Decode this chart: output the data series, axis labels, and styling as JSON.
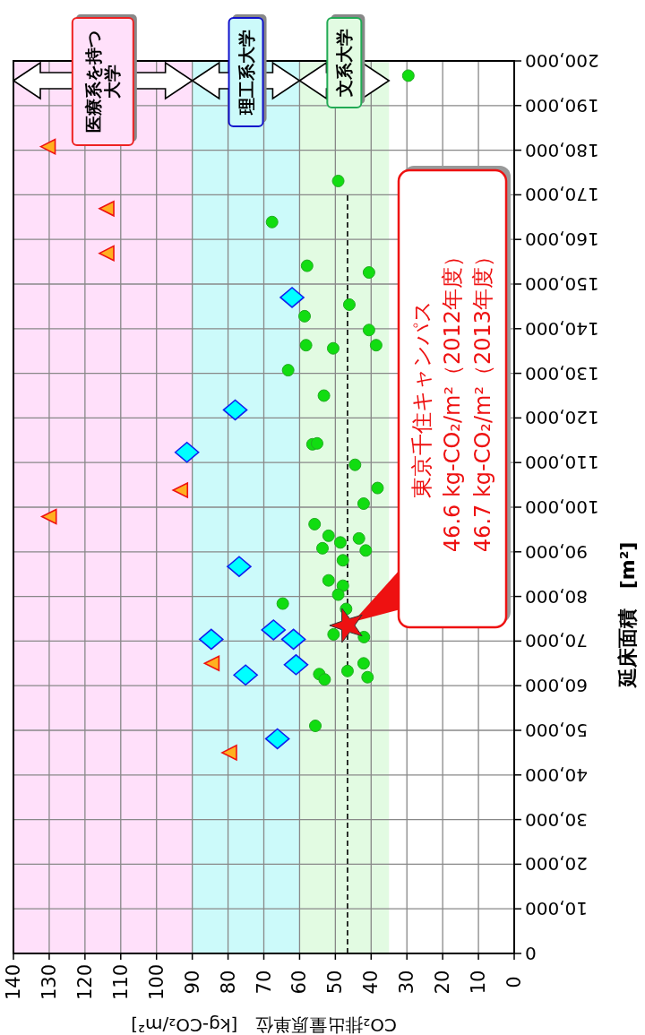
{
  "chart_data": {
    "type": "scatter",
    "xlabel": "CO₂排出量原単位　[kg-CO₂/m²]",
    "ylabel": "延床面積　[m²]",
    "xlim": [
      140,
      0
    ],
    "xticks": [
      0,
      10,
      20,
      30,
      40,
      50,
      60,
      70,
      80,
      90,
      100,
      110,
      120,
      130,
      140
    ],
    "ylim": [
      0,
      200000
    ],
    "yticks": [
      0,
      {
        "value": 10000,
        "label": "10,000"
      },
      {
        "value": 20000,
        "label": "20,000"
      },
      {
        "value": 30000,
        "label": "30,000"
      },
      {
        "value": 40000,
        "label": "40,000"
      },
      {
        "value": 50000,
        "label": "50,000"
      },
      {
        "value": 60000,
        "label": "60,000"
      },
      {
        "value": 70000,
        "label": "70,000"
      },
      {
        "value": 80000,
        "label": "80,000"
      },
      {
        "value": 90000,
        "label": "90,000"
      },
      {
        "value": 100000,
        "label": "100,000"
      },
      {
        "value": 110000,
        "label": "110,000"
      },
      {
        "value": 120000,
        "label": "120,000"
      },
      {
        "value": 130000,
        "label": "130,000"
      },
      {
        "value": 140000,
        "label": "140,000"
      },
      {
        "value": 150000,
        "label": "150,000"
      },
      {
        "value": 160000,
        "label": "160,000"
      },
      {
        "value": 170000,
        "label": "170,000"
      },
      {
        "value": 180000,
        "label": "180,000"
      },
      {
        "value": 190000,
        "label": "190,000"
      },
      {
        "value": 200000,
        "label": "200,000"
      }
    ],
    "grid": true,
    "bands": [
      {
        "axis": "x",
        "from": 140,
        "to": 90,
        "label": "医療系を持つ大学",
        "color": "#ffe0fa"
      },
      {
        "axis": "x",
        "from": 90,
        "to": 60,
        "label": "理工系大学",
        "color": "#ccfafa"
      },
      {
        "axis": "x",
        "from": 60,
        "to": 35,
        "label": "文系大学",
        "color": "#e2fbe2"
      }
    ],
    "ref_lines": [
      {
        "axis": "x",
        "value": 46.6,
        "color": "#000000",
        "line_style": "dashed"
      }
    ],
    "series": [
      {
        "marker": "circle",
        "color": "#11dd11",
        "x": [
          29.6,
          49.2,
          67.7,
          57.9,
          40.6,
          46.1,
          58.6,
          40.6,
          58.2,
          50.6,
          38.6,
          63.2,
          53.2,
          56.4,
          55.1,
          44.5,
          38.2,
          42.1,
          55.8,
          51.9,
          48.6,
          43.4,
          53.6,
          41.5,
          47.9,
          51.9,
          47.9,
          49.2,
          64.7,
          47.0,
          50.5,
          42.0,
          42.1,
          46.6,
          54.5,
          53.0,
          41.0,
          55.6
        ],
        "values": [
          196700,
          173100,
          163900,
          154100,
          152600,
          145400,
          142800,
          139700,
          136300,
          135600,
          136300,
          130700,
          125000,
          114100,
          114300,
          109500,
          104300,
          100800,
          96200,
          93600,
          92100,
          93000,
          90800,
          90300,
          88100,
          83600,
          82400,
          80400,
          78400,
          77200,
          71500,
          70900,
          65000,
          63300,
          62600,
          61400,
          61900,
          51000
        ]
      },
      {
        "marker": "diamond",
        "color": "#00ffff",
        "x": [
          62.1,
          78.0,
          91.5,
          76.9,
          67.3,
          84.7,
          61.7,
          61.0,
          75.1,
          66.2
        ],
        "values": [
          147000,
          121800,
          112300,
          86700,
          72500,
          70400,
          70400,
          64700,
          62400,
          48100
        ]
      },
      {
        "marker": "triangle",
        "color": "#ffb020",
        "x": [
          130.1,
          113.7,
          113.7,
          93.1,
          129.8,
          84.3,
          79.4
        ],
        "values": [
          180800,
          166900,
          156900,
          103800,
          97900,
          65000,
          45000
        ]
      },
      {
        "marker": "star",
        "color": "#ee1111",
        "x": [
          46.6
        ],
        "values": [
          73500
        ]
      }
    ],
    "annotations": [
      "東京千住キャンパス",
      "46.6 kg-CO₂/m²（2012年度）",
      "46.7 kg-CO₂/m²（2013年度）"
    ]
  }
}
